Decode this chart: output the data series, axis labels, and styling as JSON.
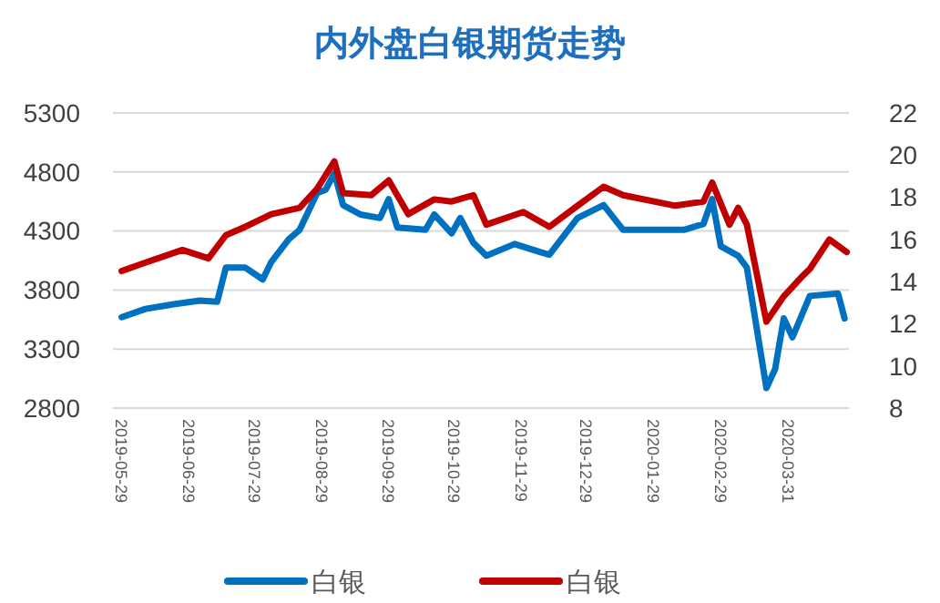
{
  "chart_data": {
    "type": "line",
    "title": "内外盘白银期货走势",
    "xlim": [
      "2019-05-25",
      "2020-04-28"
    ],
    "xticks": [
      "2019-05-29",
      "2019-06-29",
      "2019-07-29",
      "2019-08-29",
      "2019-09-29",
      "2019-10-29",
      "2019-11-29",
      "2019-12-29",
      "2020-01-29",
      "2020-02-29",
      "2020-03-31"
    ],
    "ylim": [
      2800,
      5300
    ],
    "yticks": [
      2800,
      3300,
      3800,
      4300,
      4800,
      5300
    ],
    "y2lim": [
      8,
      22
    ],
    "y2ticks": [
      8,
      10,
      12,
      14,
      16,
      18,
      20,
      22
    ],
    "grid": "y",
    "legend": "bottom",
    "marker": "none",
    "line_style": "solid",
    "series": [
      {
        "name": "白银",
        "color": "#0070c0",
        "x": [
          "2019-05-29",
          "2019-06-09",
          "2019-06-22",
          "2019-07-04",
          "2019-07-12",
          "2019-07-16",
          "2019-07-25",
          "2019-08-02",
          "2019-08-06",
          "2019-08-14",
          "2019-08-19",
          "2019-08-27",
          "2019-08-31",
          "2019-09-04",
          "2019-09-08",
          "2019-09-16",
          "2019-09-25",
          "2019-09-29",
          "2019-10-03",
          "2019-10-16",
          "2019-10-20",
          "2019-10-28",
          "2019-11-01",
          "2019-11-07",
          "2019-11-13",
          "2019-11-26",
          "2019-12-08",
          "2019-12-12",
          "2019-12-25",
          "2020-01-06",
          "2020-01-15",
          "2020-02-12",
          "2020-02-21",
          "2020-02-25",
          "2020-02-29",
          "2020-03-08",
          "2020-03-12",
          "2020-03-21",
          "2020-03-25",
          "2020-03-29",
          "2020-04-02",
          "2020-04-10",
          "2020-04-23",
          "2020-04-26"
        ],
        "values": [
          3570,
          3640,
          3680,
          3710,
          3700,
          3990,
          3990,
          3890,
          4040,
          4230,
          4310,
          4620,
          4650,
          4790,
          4520,
          4440,
          4410,
          4570,
          4330,
          4310,
          4440,
          4280,
          4410,
          4200,
          4090,
          4190,
          4120,
          4100,
          4410,
          4520,
          4310,
          4310,
          4360,
          4570,
          4170,
          4090,
          3990,
          2970,
          3130,
          3560,
          3400,
          3750,
          3770,
          3560
        ]
      },
      {
        "name": "白银",
        "color": "#c00000",
        "axis": "y2",
        "x": [
          "2019-05-29",
          "2019-06-09",
          "2019-06-26",
          "2019-07-08",
          "2019-07-16",
          "2019-07-25",
          "2019-08-06",
          "2019-08-19",
          "2019-08-27",
          "2019-09-04",
          "2019-09-08",
          "2019-09-21",
          "2019-09-29",
          "2019-10-08",
          "2019-10-20",
          "2019-10-28",
          "2019-11-07",
          "2019-11-13",
          "2019-11-30",
          "2019-12-12",
          "2019-12-25",
          "2020-01-06",
          "2020-01-15",
          "2020-02-08",
          "2020-02-21",
          "2020-02-25",
          "2020-03-04",
          "2020-03-08",
          "2020-03-12",
          "2020-03-21",
          "2020-03-29",
          "2020-04-06",
          "2020-04-10",
          "2020-04-19",
          "2020-04-27"
        ],
        "values": [
          14.5,
          14.9,
          15.5,
          15.1,
          16.2,
          16.6,
          17.2,
          17.5,
          18.4,
          19.7,
          18.2,
          18.1,
          18.8,
          17.2,
          17.9,
          17.8,
          18.1,
          16.7,
          17.3,
          16.6,
          17.6,
          18.5,
          18.1,
          17.6,
          17.8,
          18.7,
          16.7,
          17.5,
          16.7,
          12.1,
          13.3,
          14.2,
          14.6,
          16.0,
          15.4
        ]
      }
    ]
  }
}
